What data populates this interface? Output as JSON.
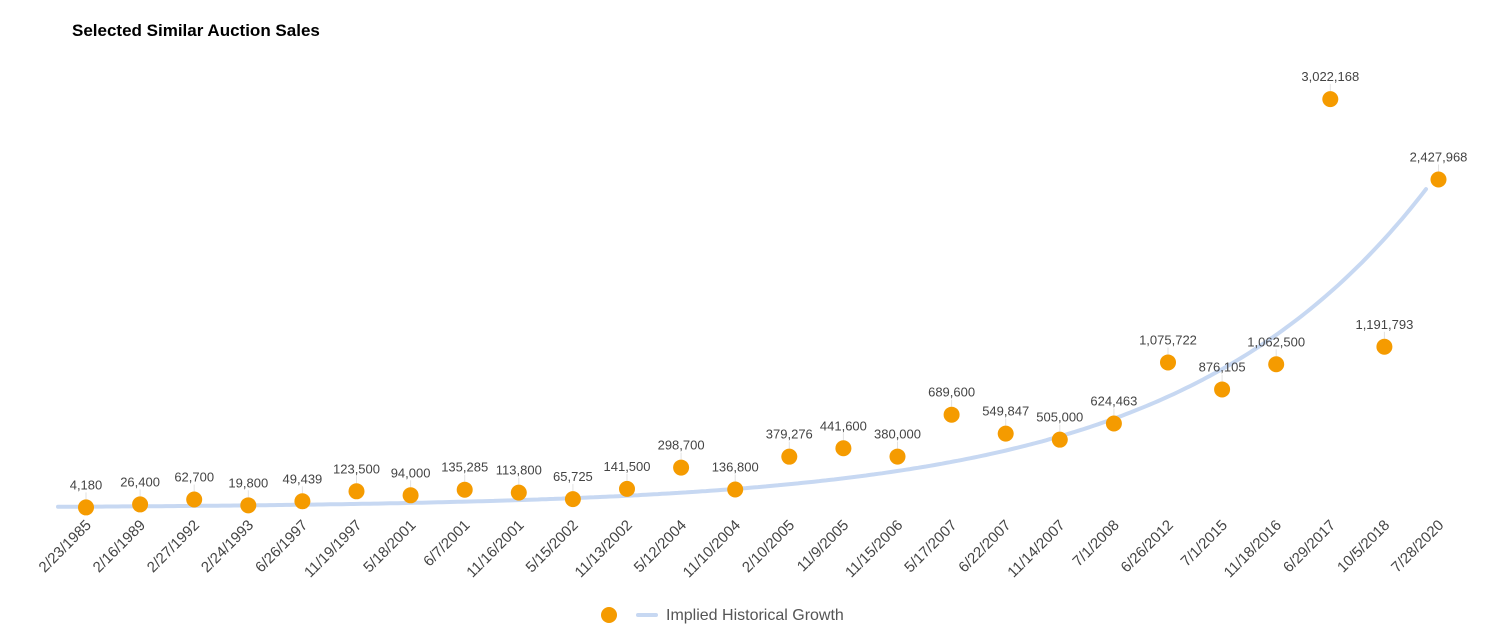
{
  "chart_data": {
    "type": "scatter",
    "title": "Selected Similar Auction Sales",
    "categories": [
      "2/23/1985",
      "2/16/1989",
      "2/27/1992",
      "2/24/1993",
      "6/26/1997",
      "11/19/1997",
      "5/18/2001",
      "6/7/2001",
      "11/16/2001",
      "5/15/2002",
      "11/13/2002",
      "5/12/2004",
      "11/10/2004",
      "2/10/2005",
      "11/9/2005",
      "11/15/2006",
      "5/17/2007",
      "6/22/2007",
      "11/14/2007",
      "7/1/2008",
      "6/26/2012",
      "7/1/2015",
      "11/18/2016",
      "6/29/2017",
      "10/5/2018",
      "7/28/2020"
    ],
    "values": [
      4180,
      26400,
      62700,
      19800,
      49439,
      123500,
      94000,
      135285,
      113800,
      65725,
      141500,
      298700,
      136800,
      379276,
      441600,
      380000,
      689600,
      549847,
      505000,
      624463,
      1075722,
      876105,
      1062500,
      3022168,
      1191793,
      2427968
    ],
    "value_labels": [
      "4,180",
      "26,400",
      "62,700",
      "19,800",
      "49,439",
      "123,500",
      "94,000",
      "135,285",
      "113,800",
      "65,725",
      "141,500",
      "298,700",
      "136,800",
      "379,276",
      "441,600",
      "380,000",
      "689,600",
      "549,847",
      "505,000",
      "624,463",
      "1,075,722",
      "876,105",
      "1,062,500",
      "3,022,168",
      "1,191,793",
      "2,427,968"
    ],
    "series": [
      {
        "name": "",
        "type": "scatter",
        "color": "#F59B00"
      },
      {
        "name": "Implied Historical Growth",
        "type": "line",
        "color": "#C7D8F2",
        "start_value": 10000,
        "end_value": 2480000
      }
    ],
    "ylim": [
      0,
      3400000
    ],
    "grid": false,
    "legend": "bottom-center",
    "xlabel": "",
    "ylabel": ""
  }
}
